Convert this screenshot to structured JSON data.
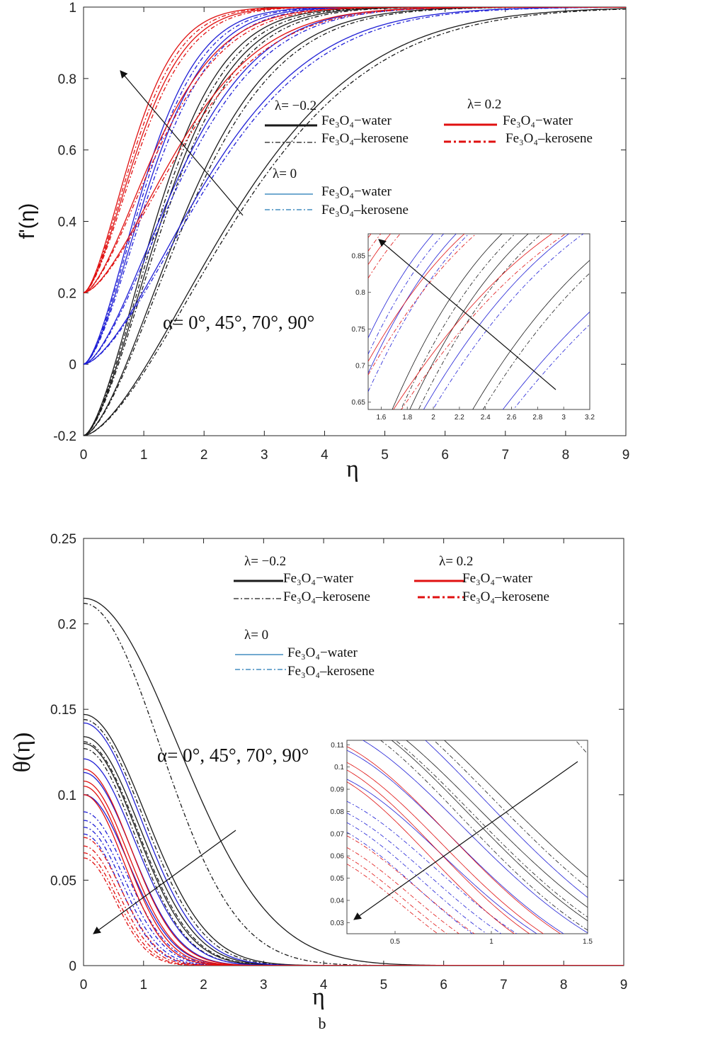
{
  "colors": {
    "lambda_-0.2": "#1a1a1a",
    "lambda_0": "#1f1fd6",
    "lambda_0.2": "#e01010",
    "axis": "#222222"
  },
  "chart_data": [
    {
      "type": "line",
      "panel": "a",
      "ylabel": "f'(η)",
      "xlabel": "η",
      "xlim": [
        0,
        9
      ],
      "ylim": [
        -0.2,
        1
      ],
      "xticks": [
        "0",
        "1",
        "2",
        "3",
        "4",
        "5",
        "6",
        "7",
        "8",
        "9"
      ],
      "yticks": [
        "-0.2",
        "0",
        "0.2",
        "0.4",
        "0.6",
        "0.8",
        "1"
      ],
      "annotation": "α= 0°, 45°, 70°, 90°",
      "legend": {
        "groups": [
          {
            "title": "λ= −0.2",
            "color": "#1a1a1a",
            "entries": [
              {
                "label": "Fe₃O₄−water",
                "style": "solid"
              },
              {
                "label": "Fe₃O₄–kerosene",
                "style": "dashdot"
              }
            ]
          },
          {
            "title": "λ= 0.2",
            "color": "#e01010",
            "entries": [
              {
                "label": "Fe₃O₄−water",
                "style": "solid"
              },
              {
                "label": "Fe₃O₄–kerosene",
                "style": "dashdot"
              }
            ]
          },
          {
            "title": "λ= 0",
            "color": "#1f1fd6",
            "entries": [
              {
                "label": "Fe₃O₄−water",
                "style": "solid"
              },
              {
                "label": "Fe₃O₄–kerosene",
                "style": "dashdot"
              }
            ]
          }
        ]
      },
      "curve_model": "f'(η) = 1 − (1 − λ)·exp(−(η/s)^1.6)",
      "series": [
        {
          "lambda": -0.2,
          "alpha": "0°",
          "fluid": "water",
          "s": 1.5
        },
        {
          "lambda": -0.2,
          "alpha": "0°",
          "fluid": "kerosene",
          "s": 1.56
        },
        {
          "lambda": -0.2,
          "alpha": "45°",
          "fluid": "water",
          "s": 1.62
        },
        {
          "lambda": -0.2,
          "alpha": "45°",
          "fluid": "kerosene",
          "s": 1.68
        },
        {
          "lambda": -0.2,
          "alpha": "70°",
          "fluid": "water",
          "s": 2.05
        },
        {
          "lambda": -0.2,
          "alpha": "70°",
          "fluid": "kerosene",
          "s": 2.12
        },
        {
          "lambda": -0.2,
          "alpha": "90°",
          "fluid": "water",
          "s": 3.05
        },
        {
          "lambda": -0.2,
          "alpha": "90°",
          "fluid": "kerosene",
          "s": 3.15
        },
        {
          "lambda": 0,
          "alpha": "0°",
          "fluid": "water",
          "s": 1.25
        },
        {
          "lambda": 0,
          "alpha": "0°",
          "fluid": "kerosene",
          "s": 1.3
        },
        {
          "lambda": 0,
          "alpha": "45°",
          "fluid": "water",
          "s": 1.36
        },
        {
          "lambda": 0,
          "alpha": "45°",
          "fluid": "kerosene",
          "s": 1.42
        },
        {
          "lambda": 0,
          "alpha": "70°",
          "fluid": "water",
          "s": 1.9
        },
        {
          "lambda": 0,
          "alpha": "70°",
          "fluid": "kerosene",
          "s": 1.97
        },
        {
          "lambda": 0,
          "alpha": "90°",
          "fluid": "water",
          "s": 2.5
        },
        {
          "lambda": 0,
          "alpha": "90°",
          "fluid": "kerosene",
          "s": 2.58
        },
        {
          "lambda": 0.2,
          "alpha": "0°",
          "fluid": "water",
          "s": 1.02
        },
        {
          "lambda": 0.2,
          "alpha": "0°",
          "fluid": "kerosene",
          "s": 1.07
        },
        {
          "lambda": 0.2,
          "alpha": "45°",
          "fluid": "water",
          "s": 1.12
        },
        {
          "lambda": 0.2,
          "alpha": "45°",
          "fluid": "kerosene",
          "s": 1.17
        },
        {
          "lambda": 0.2,
          "alpha": "70°",
          "fluid": "water",
          "s": 1.5
        },
        {
          "lambda": 0.2,
          "alpha": "70°",
          "fluid": "kerosene",
          "s": 1.56
        },
        {
          "lambda": 0.2,
          "alpha": "90°",
          "fluid": "water",
          "s": 1.95
        },
        {
          "lambda": 0.2,
          "alpha": "90°",
          "fluid": "kerosene",
          "s": 2.02
        }
      ],
      "inset": {
        "xlim": [
          1.5,
          3.2
        ],
        "ylim": [
          0.64,
          0.88
        ],
        "xticks": [
          "1.6",
          "1.8",
          "2",
          "2.2",
          "2.4",
          "2.6",
          "2.8",
          "3",
          "3.2"
        ],
        "yticks": [
          "0.65",
          "0.7",
          "0.75",
          "0.8",
          "0.85"
        ]
      }
    },
    {
      "type": "line",
      "panel": "b",
      "ylabel": "θ(η)",
      "xlabel": "η",
      "caption": "b",
      "xlim": [
        0,
        9
      ],
      "ylim": [
        0,
        0.25
      ],
      "xticks": [
        "0",
        "1",
        "2",
        "3",
        "4",
        "5",
        "6",
        "7",
        "8",
        "9"
      ],
      "yticks": [
        "0",
        "0.05",
        "0.1",
        "0.15",
        "0.2",
        "0.25"
      ],
      "annotation": "α= 0°, 45°, 70°, 90°",
      "legend": {
        "groups": [
          {
            "title": "λ= −0.2",
            "color": "#1a1a1a",
            "entries": [
              {
                "label": "Fe₃O₄−water",
                "style": "solid"
              },
              {
                "label": "Fe₃O₄–kerosene",
                "style": "dashdot"
              }
            ]
          },
          {
            "title": "λ= 0.2",
            "color": "#e01010",
            "entries": [
              {
                "label": "Fe₃O₄−water",
                "style": "solid"
              },
              {
                "label": "Fe₃O₄–kerosene",
                "style": "dashdot"
              }
            ]
          },
          {
            "title": "λ= 0",
            "color": "#1f1fd6",
            "entries": [
              {
                "label": "Fe₃O₄−water",
                "style": "solid"
              },
              {
                "label": "Fe₃O₄–kerosene",
                "style": "dashdot"
              }
            ]
          }
        ]
      },
      "curve_model": "θ(η) = θ0·exp(−(η/s)^2)",
      "series": [
        {
          "lambda": -0.2,
          "alpha": "0°",
          "fluid": "water",
          "theta0": 0.13,
          "s": 1.25
        },
        {
          "lambda": -0.2,
          "alpha": "0°",
          "fluid": "kerosene",
          "theta0": 0.127,
          "s": 1.2
        },
        {
          "lambda": -0.2,
          "alpha": "45°",
          "fluid": "water",
          "theta0": 0.134,
          "s": 1.32
        },
        {
          "lambda": -0.2,
          "alpha": "45°",
          "fluid": "kerosene",
          "theta0": 0.131,
          "s": 1.27
        },
        {
          "lambda": -0.2,
          "alpha": "70°",
          "fluid": "water",
          "theta0": 0.147,
          "s": 1.45
        },
        {
          "lambda": -0.2,
          "alpha": "70°",
          "fluid": "kerosene",
          "theta0": 0.144,
          "s": 1.4
        },
        {
          "lambda": -0.2,
          "alpha": "90°",
          "fluid": "water",
          "theta0": 0.215,
          "s": 2.2
        },
        {
          "lambda": -0.2,
          "alpha": "90°",
          "fluid": "kerosene",
          "theta0": 0.212,
          "s": 1.8
        },
        {
          "lambda": 0,
          "alpha": "0°",
          "fluid": "water",
          "theta0": 0.1,
          "s": 1.05
        },
        {
          "lambda": 0,
          "alpha": "0°",
          "fluid": "kerosene",
          "theta0": 0.077,
          "s": 0.85
        },
        {
          "lambda": 0,
          "alpha": "45°",
          "fluid": "water",
          "theta0": 0.113,
          "s": 1.12
        },
        {
          "lambda": 0,
          "alpha": "45°",
          "fluid": "kerosene",
          "theta0": 0.081,
          "s": 0.9
        },
        {
          "lambda": 0,
          "alpha": "70°",
          "fluid": "water",
          "theta0": 0.121,
          "s": 1.2
        },
        {
          "lambda": 0,
          "alpha": "70°",
          "fluid": "kerosene",
          "theta0": 0.085,
          "s": 0.95
        },
        {
          "lambda": 0,
          "alpha": "90°",
          "fluid": "water",
          "theta0": 0.142,
          "s": 1.35
        },
        {
          "lambda": 0,
          "alpha": "90°",
          "fluid": "kerosene",
          "theta0": 0.09,
          "s": 1.0
        },
        {
          "lambda": 0.2,
          "alpha": "0°",
          "fluid": "water",
          "theta0": 0.1,
          "s": 0.95
        },
        {
          "lambda": 0.2,
          "alpha": "0°",
          "fluid": "kerosene",
          "theta0": 0.063,
          "s": 0.75
        },
        {
          "lambda": 0.2,
          "alpha": "45°",
          "fluid": "water",
          "theta0": 0.105,
          "s": 1.0
        },
        {
          "lambda": 0.2,
          "alpha": "45°",
          "fluid": "kerosene",
          "theta0": 0.066,
          "s": 0.78
        },
        {
          "lambda": 0.2,
          "alpha": "70°",
          "fluid": "water",
          "theta0": 0.108,
          "s": 1.05
        },
        {
          "lambda": 0.2,
          "alpha": "70°",
          "fluid": "kerosene",
          "theta0": 0.07,
          "s": 0.82
        },
        {
          "lambda": 0.2,
          "alpha": "90°",
          "fluid": "water",
          "theta0": 0.115,
          "s": 1.1
        },
        {
          "lambda": 0.2,
          "alpha": "90°",
          "fluid": "kerosene",
          "theta0": 0.075,
          "s": 0.87
        }
      ],
      "inset": {
        "xlim": [
          0.25,
          1.5
        ],
        "ylim": [
          0.025,
          0.112
        ],
        "xticks": [
          "0.5",
          "1",
          "1.5"
        ],
        "yticks": [
          "0.03",
          "0.04",
          "0.05",
          "0.06",
          "0.07",
          "0.08",
          "0.09",
          "0.1",
          "0.11"
        ]
      }
    }
  ]
}
